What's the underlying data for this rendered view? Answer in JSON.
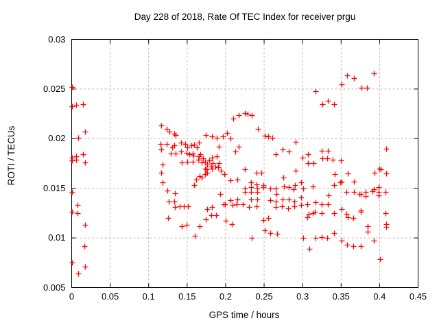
{
  "chart_data": {
    "type": "scatter",
    "title": "Day 228 of 2018, Rate Of TEC Index for receiver prgu",
    "xlabel": "GPS time / hours",
    "ylabel": "ROTI / TECUs",
    "xlim": [
      0,
      0.45
    ],
    "ylim": [
      0.005,
      0.03
    ],
    "x_ticks": [
      0,
      0.05,
      0.1,
      0.15,
      0.2,
      0.25,
      0.3,
      0.35,
      0.4,
      0.45
    ],
    "x_tick_labels": [
      "0",
      "0.05",
      "0.1",
      "0.15",
      "0.2",
      "0.25",
      "0.3",
      "0.35",
      "0.4",
      "0.45"
    ],
    "y_ticks": [
      0.005,
      0.01,
      0.015,
      0.02,
      0.025,
      0.03
    ],
    "y_tick_labels": [
      "0.005",
      "0.01",
      "0.015",
      "0.02",
      "0.025",
      "0.03"
    ],
    "grid": "dashed",
    "legend": "none",
    "marker": "plus",
    "colors": {
      "points": "#ff0000",
      "grid": "#b8b8b8",
      "axis": "#000000",
      "text": "#000000",
      "background": "#ffffff"
    },
    "series": [
      {
        "name": "ROTI",
        "points": [
          [
            0.0005,
            0.0252
          ],
          [
            0.0005,
            0.0233
          ],
          [
            0.0062,
            0.0234
          ],
          [
            0.0143,
            0.0235
          ],
          [
            0.0172,
            0.0207
          ],
          [
            0.0083,
            0.0201
          ],
          [
            0.0005,
            0.0181
          ],
          [
            0.0005,
            0.0178
          ],
          [
            0.006,
            0.0182
          ],
          [
            0.006,
            0.0179
          ],
          [
            0.0143,
            0.0184
          ],
          [
            0.0172,
            0.0176
          ],
          [
            0.0005,
            0.0146
          ],
          [
            0.008,
            0.0133
          ],
          [
            0.0005,
            0.0126
          ],
          [
            0.0077,
            0.0125
          ],
          [
            0.0172,
            0.0113
          ],
          [
            0.0167,
            0.0092
          ],
          [
            0.0005,
            0.0075
          ],
          [
            0.0172,
            0.0071
          ],
          [
            0.0083,
            0.0064
          ],
          [
            0.1167,
            0.0213
          ],
          [
            0.1233,
            0.021
          ],
          [
            0.1272,
            0.0207
          ],
          [
            0.1336,
            0.0205
          ],
          [
            0.135,
            0.0204
          ],
          [
            0.1417,
            0.0196
          ],
          [
            0.1479,
            0.0195
          ],
          [
            0.1152,
            0.0195
          ],
          [
            0.1235,
            0.0195
          ],
          [
            0.1332,
            0.0193
          ],
          [
            0.1503,
            0.0191
          ],
          [
            0.1553,
            0.0193
          ],
          [
            0.1589,
            0.0194
          ],
          [
            0.1655,
            0.0196
          ],
          [
            0.163,
            0.0191
          ],
          [
            0.174,
            0.0204
          ],
          [
            0.1818,
            0.0202
          ],
          [
            0.1883,
            0.0201
          ],
          [
            0.1967,
            0.0202
          ],
          [
            0.202,
            0.0206
          ],
          [
            0.206,
            0.02
          ],
          [
            0.1907,
            0.0192
          ],
          [
            0.1164,
            0.0189
          ],
          [
            0.1307,
            0.0191
          ],
          [
            0.1286,
            0.0185
          ],
          [
            0.135,
            0.0185
          ],
          [
            0.1417,
            0.0187
          ],
          [
            0.1491,
            0.0186
          ],
          [
            0.1524,
            0.0184
          ],
          [
            0.1577,
            0.0185
          ],
          [
            0.158,
            0.0183
          ],
          [
            0.1655,
            0.0182
          ],
          [
            0.1672,
            0.0184
          ],
          [
            0.1179,
            0.0174
          ],
          [
            0.1426,
            0.0176
          ],
          [
            0.15,
            0.0177
          ],
          [
            0.1574,
            0.0177
          ],
          [
            0.1642,
            0.0179
          ],
          [
            0.1687,
            0.0176
          ],
          [
            0.1708,
            0.018
          ],
          [
            0.1729,
            0.0177
          ],
          [
            0.1764,
            0.0174
          ],
          [
            0.179,
            0.0178
          ],
          [
            0.1818,
            0.0181
          ],
          [
            0.1833,
            0.0175
          ],
          [
            0.1812,
            0.0172
          ],
          [
            0.1871,
            0.0172
          ],
          [
            0.1883,
            0.0182
          ],
          [
            0.1913,
            0.0175
          ],
          [
            0.1167,
            0.0166
          ],
          [
            0.1182,
            0.0156
          ],
          [
            0.1731,
            0.017
          ],
          [
            0.1753,
            0.0169
          ],
          [
            0.1818,
            0.017
          ],
          [
            0.1901,
            0.0171
          ],
          [
            0.194,
            0.0168
          ],
          [
            0.1664,
            0.0162
          ],
          [
            0.1729,
            0.0164
          ],
          [
            0.1687,
            0.0161
          ],
          [
            0.1613,
            0.0159
          ],
          [
            0.1589,
            0.0153
          ],
          [
            0.1762,
            0.0166
          ],
          [
            0.1984,
            0.0164
          ],
          [
            0.1247,
            0.0148
          ],
          [
            0.134,
            0.0145
          ],
          [
            0.1263,
            0.0137
          ],
          [
            0.133,
            0.0137
          ],
          [
            0.134,
            0.0131
          ],
          [
            0.1405,
            0.0132
          ],
          [
            0.1458,
            0.0132
          ],
          [
            0.1509,
            0.0132
          ],
          [
            0.1256,
            0.012
          ],
          [
            0.1428,
            0.0112
          ],
          [
            0.1494,
            0.0113
          ],
          [
            0.1598,
            0.0102
          ],
          [
            0.1925,
            0.0144
          ],
          [
            0.1756,
            0.0129
          ],
          [
            0.1821,
            0.0131
          ],
          [
            0.1746,
            0.0119
          ],
          [
            0.1815,
            0.0123
          ],
          [
            0.188,
            0.0123
          ],
          [
            0.1663,
            0.0112
          ],
          [
            0.197,
            0.0134
          ],
          [
            0.199,
            0.0134
          ],
          [
            0.1999,
            0.0117
          ],
          [
            0.2095,
            0.022
          ],
          [
            0.2168,
            0.0224
          ],
          [
            0.2246,
            0.0226
          ],
          [
            0.2287,
            0.0225
          ],
          [
            0.2335,
            0.0224
          ],
          [
            0.2127,
            0.0187
          ],
          [
            0.2168,
            0.0192
          ],
          [
            0.2067,
            0.0158
          ],
          [
            0.206,
            0.0138
          ],
          [
            0.209,
            0.0133
          ],
          [
            0.2142,
            0.0134
          ],
          [
            0.2082,
            0.0114
          ],
          [
            0.2156,
            0.0159
          ],
          [
            0.2156,
            0.0139
          ],
          [
            0.2415,
            0.021
          ],
          [
            0.251,
            0.0203
          ],
          [
            0.2555,
            0.0202
          ],
          [
            0.2608,
            0.0201
          ],
          [
            0.2246,
            0.0169
          ],
          [
            0.24,
            0.0166
          ],
          [
            0.2466,
            0.0166
          ],
          [
            0.2905,
            0.0168
          ],
          [
            0.275,
            0.0161
          ],
          [
            0.2326,
            0.0156
          ],
          [
            0.24,
            0.0154
          ],
          [
            0.2246,
            0.015
          ],
          [
            0.2326,
            0.0151
          ],
          [
            0.2409,
            0.015
          ],
          [
            0.249,
            0.0151
          ],
          [
            0.249,
            0.0153
          ],
          [
            0.2578,
            0.015
          ],
          [
            0.2653,
            0.015
          ],
          [
            0.2762,
            0.0152
          ],
          [
            0.2816,
            0.0151
          ],
          [
            0.2881,
            0.0149
          ],
          [
            0.2899,
            0.0153
          ],
          [
            0.2985,
            0.0156
          ],
          [
            0.3003,
            0.015
          ],
          [
            0.2246,
            0.0146
          ],
          [
            0.2326,
            0.0146
          ],
          [
            0.2409,
            0.0146
          ],
          [
            0.2662,
            0.0144
          ],
          [
            0.2326,
            0.0139
          ],
          [
            0.2409,
            0.0139
          ],
          [
            0.2578,
            0.0138
          ],
          [
            0.2653,
            0.0137
          ],
          [
            0.2742,
            0.0139
          ],
          [
            0.2816,
            0.0139
          ],
          [
            0.289,
            0.0137
          ],
          [
            0.2985,
            0.0141
          ],
          [
            0.2222,
            0.0134
          ],
          [
            0.2305,
            0.0131
          ],
          [
            0.24,
            0.0132
          ],
          [
            0.2653,
            0.0131
          ],
          [
            0.2727,
            0.0132
          ],
          [
            0.2807,
            0.013
          ],
          [
            0.289,
            0.0132
          ],
          [
            0.2979,
            0.0133
          ],
          [
            0.306,
            0.0134
          ],
          [
            0.249,
            0.0118
          ],
          [
            0.2555,
            0.012
          ],
          [
            0.2504,
            0.0108
          ],
          [
            0.2578,
            0.0105
          ],
          [
            0.2667,
            0.0104
          ],
          [
            0.234,
            0.01
          ],
          [
            0.3009,
            0.01
          ],
          [
            0.3089,
            0.0089
          ],
          [
            0.3083,
            0.0124
          ],
          [
            0.3157,
            0.0126
          ],
          [
            0.306,
            0.0121
          ],
          [
            0.2905,
            0.0197
          ],
          [
            0.2653,
            0.0184
          ],
          [
            0.2742,
            0.0189
          ],
          [
            0.2816,
            0.0187
          ],
          [
            0.3,
            0.0181
          ],
          [
            0.3068,
            0.0184
          ],
          [
            0.3068,
            0.0175
          ],
          [
            0.3137,
            0.0175
          ],
          [
            0.3164,
            0.0248
          ],
          [
            0.3256,
            0.0235
          ],
          [
            0.333,
            0.0238
          ],
          [
            0.3411,
            0.0235
          ],
          [
            0.3509,
            0.0255
          ],
          [
            0.358,
            0.0264
          ],
          [
            0.3663,
            0.0261
          ],
          [
            0.3767,
            0.0251
          ],
          [
            0.3835,
            0.0251
          ],
          [
            0.3924,
            0.0266
          ],
          [
            0.3247,
            0.0188
          ],
          [
            0.333,
            0.0188
          ],
          [
            0.3253,
            0.018
          ],
          [
            0.3321,
            0.018
          ],
          [
            0.3395,
            0.0179
          ],
          [
            0.35,
            0.0178
          ],
          [
            0.4084,
            0.019
          ],
          [
            0.3588,
            0.0165
          ],
          [
            0.393,
            0.0166
          ],
          [
            0.3993,
            0.017
          ],
          [
            0.4018,
            0.0169
          ],
          [
            0.4087,
            0.0165
          ],
          [
            0.342,
            0.0164
          ],
          [
            0.341,
            0.0153
          ],
          [
            0.349,
            0.0156
          ],
          [
            0.3509,
            0.0157
          ],
          [
            0.3663,
            0.0157
          ],
          [
            0.3128,
            0.0152
          ],
          [
            0.3573,
            0.0146
          ],
          [
            0.3663,
            0.0146
          ],
          [
            0.3737,
            0.0144
          ],
          [
            0.3755,
            0.0144
          ],
          [
            0.3817,
            0.0146
          ],
          [
            0.3817,
            0.0142
          ],
          [
            0.3906,
            0.0147
          ],
          [
            0.3924,
            0.0149
          ],
          [
            0.399,
            0.0151
          ],
          [
            0.399,
            0.0146
          ],
          [
            0.399,
            0.0143
          ],
          [
            0.4078,
            0.0146
          ],
          [
            0.3336,
            0.0143
          ],
          [
            0.3164,
            0.0136
          ],
          [
            0.3247,
            0.0134
          ],
          [
            0.333,
            0.0134
          ],
          [
            0.3128,
            0.0125
          ],
          [
            0.3247,
            0.0125
          ],
          [
            0.3411,
            0.0125
          ],
          [
            0.3509,
            0.0129
          ],
          [
            0.3573,
            0.0124
          ],
          [
            0.3758,
            0.0128
          ],
          [
            0.3758,
            0.0126
          ],
          [
            0.3588,
            0.0121
          ],
          [
            0.3657,
            0.012
          ],
          [
            0.4078,
            0.0125
          ],
          [
            0.4087,
            0.0114
          ],
          [
            0.4087,
            0.0111
          ],
          [
            0.3841,
            0.0112
          ],
          [
            0.3841,
            0.0106
          ],
          [
            0.3411,
            0.0105
          ],
          [
            0.3164,
            0.01
          ],
          [
            0.3247,
            0.0101
          ],
          [
            0.3321,
            0.01
          ],
          [
            0.3509,
            0.0097
          ],
          [
            0.358,
            0.0093
          ],
          [
            0.3657,
            0.0092
          ],
          [
            0.3752,
            0.0092
          ],
          [
            0.3924,
            0.0097
          ],
          [
            0.4004,
            0.0079
          ]
        ]
      }
    ]
  }
}
